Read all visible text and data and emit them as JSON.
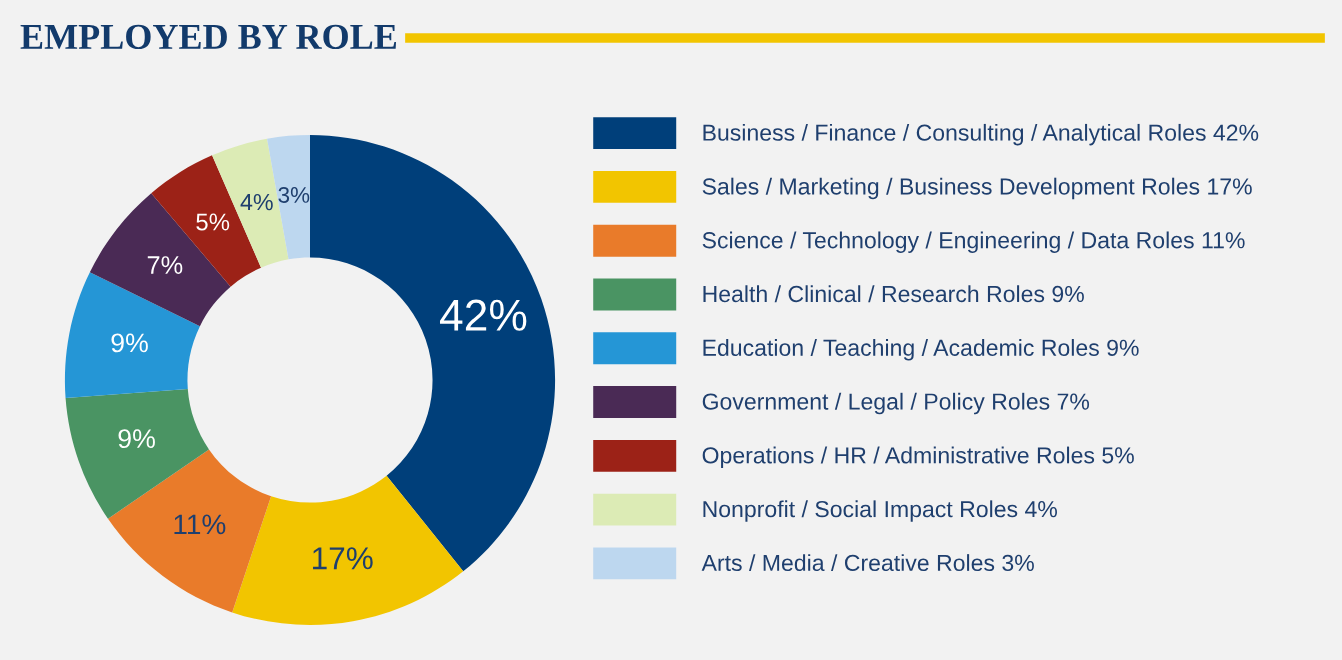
{
  "chart_data": {
    "type": "donut",
    "title": "EMPLOYED BY ROLE",
    "categories": [
      "Business / Finance / Consulting / Analytical Roles 42%",
      "Sales / Marketing / Business Development Roles 17%",
      "Science / Technology / Engineering / Data Roles 11%",
      "Health / Clinical / Research Roles 9%",
      "Education / Teaching / Academic Roles 9%",
      "Government / Legal / Policy Roles 7%",
      "Operations / HR / Administrative Roles 5%",
      "Nonprofit / Social Impact Roles 4%",
      "Arts / Media / Creative Roles 3%"
    ],
    "values": [
      42,
      17,
      11,
      9,
      9,
      7,
      5,
      4,
      3
    ],
    "value_labels": [
      "42%",
      "17%",
      "11%",
      "9%",
      "9%",
      "7%",
      "5%",
      "4%",
      "3%"
    ],
    "colors": [
      "#003f7a",
      "#f2c500",
      "#e97b2a",
      "#4a9463",
      "#2596d6",
      "#4a2a55",
      "#9c2217",
      "#dcebb5",
      "#bdd7ef"
    ],
    "legend": "right"
  }
}
